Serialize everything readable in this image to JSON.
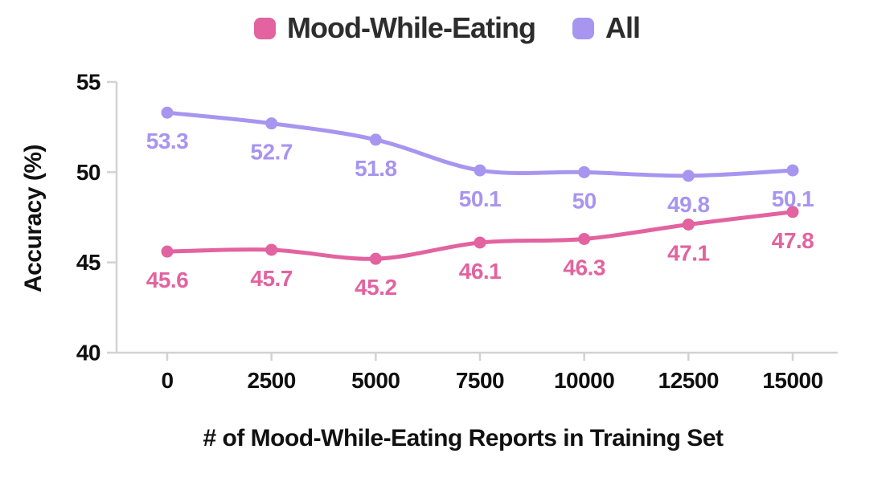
{
  "chart_data": {
    "type": "line",
    "title": "",
    "xlabel": "# of Mood-While-Eating Reports in Training Set",
    "ylabel": "Accuracy (%)",
    "x": [
      0,
      2500,
      5000,
      7500,
      10000,
      12500,
      15000
    ],
    "xtick_labels": [
      "0",
      "2500",
      "5000",
      "7500",
      "10000",
      "12500",
      "15000"
    ],
    "yticks": [
      40,
      45,
      50,
      55
    ],
    "ylim": [
      40,
      55
    ],
    "grid": false,
    "legend_position": "top-center",
    "point_value_labels_shown": true,
    "series": [
      {
        "name": "Mood-While-Eating",
        "color": "#e2639f",
        "values": [
          45.6,
          45.7,
          45.2,
          46.1,
          46.3,
          47.1,
          47.8
        ],
        "value_labels": [
          "45.6",
          "45.7",
          "45.2",
          "46.1",
          "46.3",
          "47.1",
          "47.8"
        ]
      },
      {
        "name": "All",
        "color": "#a795f0",
        "values": [
          53.3,
          52.7,
          51.8,
          50.1,
          50,
          49.8,
          50.1
        ],
        "value_labels": [
          "53.3",
          "52.7",
          "51.8",
          "50.1",
          "50",
          "49.8",
          "50.1"
        ]
      }
    ]
  },
  "colors": {
    "background": "#ffffff",
    "axis": "#d2d2d2",
    "tick_text": "#0f0f0f",
    "legend_text": "#2d2d2d",
    "axis_title_text": "#111111"
  }
}
